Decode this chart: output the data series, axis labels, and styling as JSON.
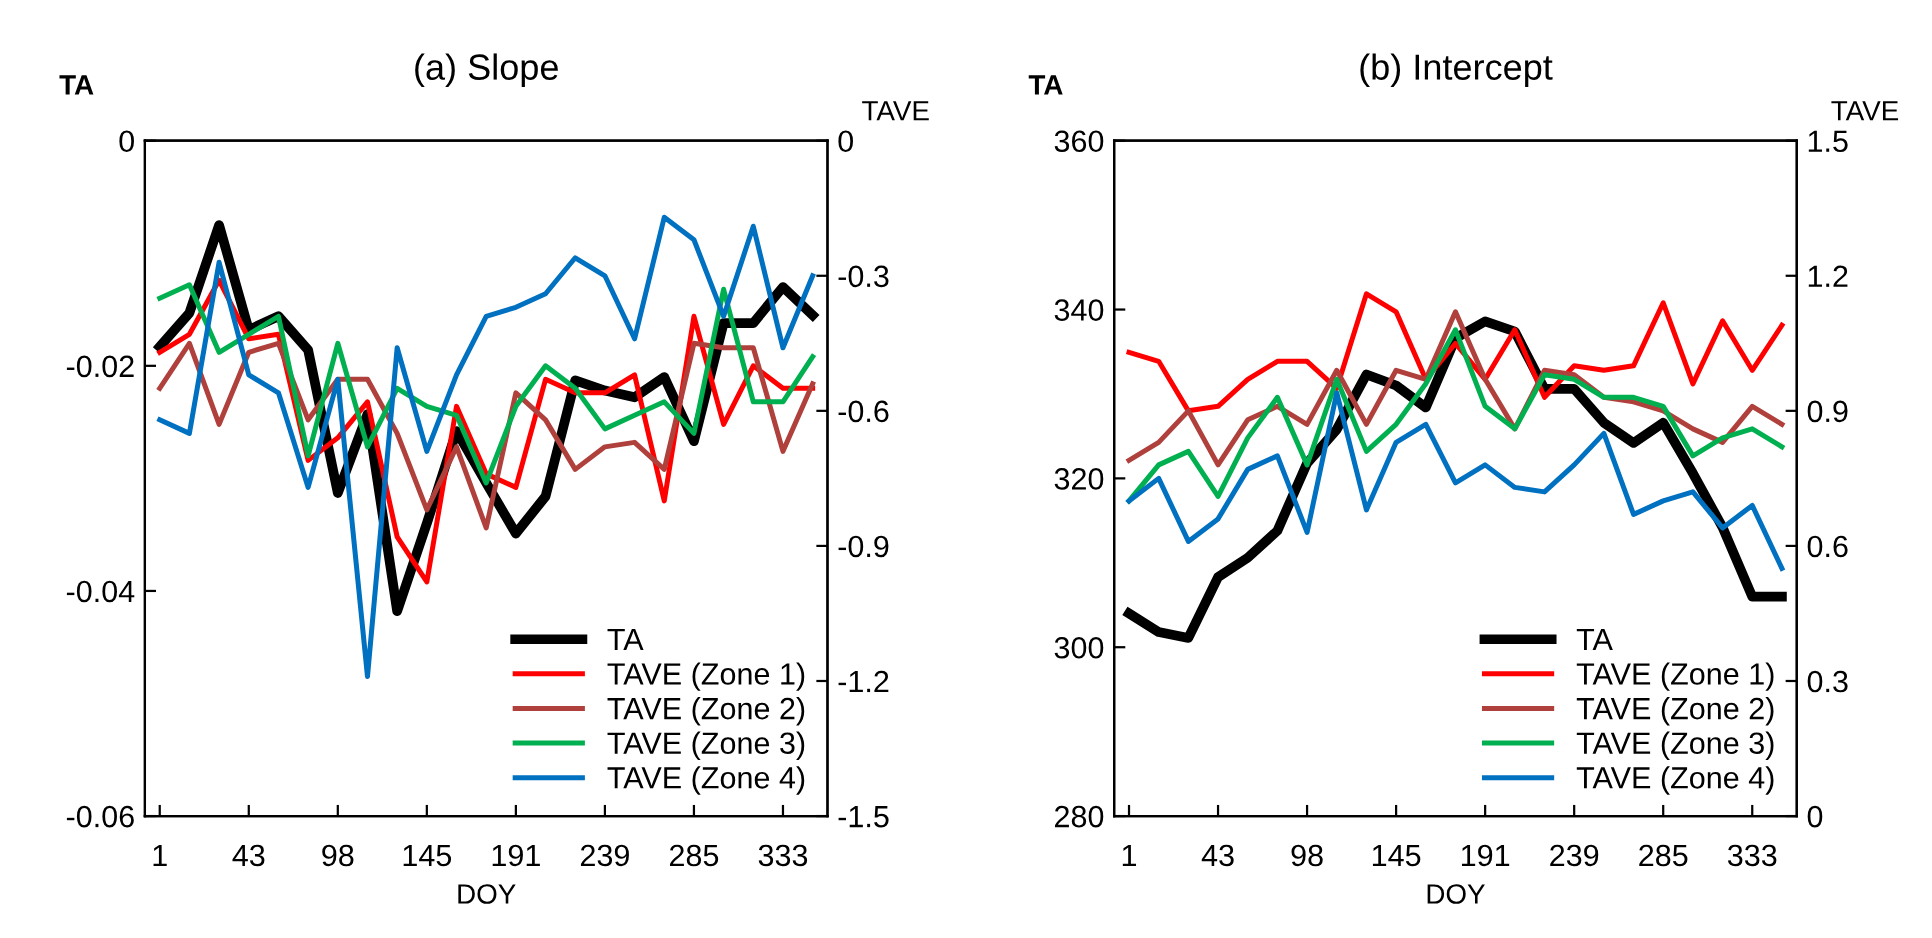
{
  "chart_data": [
    {
      "type": "line",
      "title": "(a) Slope",
      "xlabel": "DOY",
      "ylabel": "TA",
      "y2label": "TAVE",
      "categories": [
        "1",
        null,
        null,
        "43",
        null,
        null,
        "98",
        null,
        null,
        "145",
        null,
        null,
        "191",
        null,
        null,
        "239",
        null,
        null,
        "285",
        null,
        null,
        "333",
        null
      ],
      "ylim": [
        -0.06,
        0
      ],
      "yticks": [
        {
          "value": -0.06,
          "label": "-0.06"
        },
        {
          "value": -0.04,
          "label": "-0.04"
        },
        {
          "value": -0.02,
          "label": "-0.02"
        },
        0
      ],
      "y2lim": [
        -1.5,
        0
      ],
      "y2ticks": [
        {
          "value": -1.5,
          "label": "-1.5"
        },
        {
          "value": -1.2,
          "label": "-1.2"
        },
        {
          "value": -0.9,
          "label": "-0.9"
        },
        {
          "value": -0.6,
          "label": "-0.6"
        },
        {
          "value": -0.3,
          "label": "-0.3"
        },
        0
      ],
      "legend": "bottom right",
      "grid": false,
      "series": [
        {
          "name": "TA",
          "color": "#000000",
          "values": [
            -0.0183,
            -0.0153,
            -0.0075,
            -0.0168,
            -0.0156,
            -0.0186,
            -0.0313,
            -0.0243,
            -0.0418,
            -0.034,
            -0.0258,
            -0.0304,
            -0.0349,
            -0.0316,
            -0.0213,
            -0.0222,
            -0.0228,
            -0.021,
            -0.0267,
            -0.0162,
            -0.0162,
            -0.013,
            -0.0155
          ]
        },
        {
          "name": "TAVE (Zone 1)",
          "color": "#ff0000",
          "axis": "y2",
          "values": [
            -0.47,
            -0.43,
            -0.31,
            -0.44,
            -0.43,
            -0.71,
            -0.66,
            -0.58,
            -0.88,
            -0.98,
            -0.59,
            -0.74,
            -0.77,
            -0.53,
            -0.56,
            -0.56,
            -0.52,
            -0.8,
            -0.39,
            -0.63,
            -0.5,
            -0.55,
            -0.55
          ]
        },
        {
          "name": "TAVE (Zone 2)",
          "color": "#b0403c",
          "axis": "y2",
          "values": [
            -0.55,
            -0.45,
            -0.63,
            -0.47,
            -0.45,
            -0.62,
            -0.53,
            -0.53,
            -0.65,
            -0.82,
            -0.68,
            -0.86,
            -0.56,
            -0.62,
            -0.73,
            -0.68,
            -0.67,
            -0.73,
            -0.45,
            -0.46,
            -0.46,
            -0.69,
            -0.54
          ]
        },
        {
          "name": "TAVE (Zone 3)",
          "color": "#00b050",
          "axis": "y2",
          "values": [
            -0.35,
            -0.32,
            -0.47,
            -0.43,
            -0.39,
            -0.7,
            -0.45,
            -0.68,
            -0.55,
            -0.59,
            -0.61,
            -0.76,
            -0.59,
            -0.5,
            -0.55,
            -0.64,
            -0.61,
            -0.58,
            -0.65,
            -0.33,
            -0.58,
            -0.58,
            -0.48
          ]
        },
        {
          "name": "TAVE (Zone 4)",
          "color": "#0070c0",
          "axis": "y2",
          "values": [
            -0.62,
            -0.65,
            -0.27,
            -0.52,
            -0.56,
            -0.77,
            -0.53,
            -1.19,
            -0.46,
            -0.69,
            -0.52,
            -0.39,
            -0.37,
            -0.34,
            -0.26,
            -0.3,
            -0.44,
            -0.17,
            -0.22,
            -0.39,
            -0.19,
            -0.46,
            -0.3
          ]
        }
      ]
    },
    {
      "type": "line",
      "title": "(b) Intercept",
      "xlabel": "DOY",
      "ylabel": "TA",
      "y2label": "TAVE",
      "categories": [
        "1",
        null,
        null,
        "43",
        null,
        null,
        "98",
        null,
        null,
        "145",
        null,
        null,
        "191",
        null,
        null,
        "239",
        null,
        null,
        "285",
        null,
        null,
        "333",
        null
      ],
      "ylim": [
        280,
        360
      ],
      "yticks": [
        280,
        300,
        320,
        340,
        360
      ],
      "y2lim": [
        0,
        1.5
      ],
      "y2ticks": [
        0,
        0.3,
        0.6,
        0.9,
        1.2,
        1.5
      ],
      "legend": "bottom right",
      "grid": false,
      "series": [
        {
          "name": "TA",
          "color": "#000000",
          "values": [
            304,
            301.8,
            301.1,
            308.3,
            310.6,
            313.8,
            321.8,
            325.8,
            332.3,
            331,
            328.4,
            336.6,
            338.6,
            337.4,
            330.6,
            330.6,
            326.6,
            324.2,
            326.6,
            320.6,
            314.2,
            306,
            306
          ]
        },
        {
          "name": "TAVE (Zone 1)",
          "color": "#ff0000",
          "axis": "y2",
          "values": [
            1.03,
            1.01,
            0.9,
            0.91,
            0.97,
            1.01,
            1.01,
            0.95,
            1.16,
            1.12,
            0.97,
            1.05,
            0.97,
            1.08,
            0.93,
            1.0,
            0.99,
            1.0,
            1.14,
            0.96,
            1.1,
            0.99,
            1.09
          ]
        },
        {
          "name": "TAVE (Zone 2)",
          "color": "#b0403c",
          "axis": "y2",
          "values": [
            0.79,
            0.83,
            0.9,
            0.78,
            0.88,
            0.91,
            0.87,
            0.99,
            0.87,
            0.99,
            0.97,
            1.12,
            0.97,
            0.86,
            0.99,
            0.98,
            0.93,
            0.92,
            0.9,
            0.86,
            0.83,
            0.91,
            0.87
          ]
        },
        {
          "name": "TAVE (Zone 3)",
          "color": "#00b050",
          "axis": "y2",
          "values": [
            0.7,
            0.78,
            0.81,
            0.71,
            0.84,
            0.93,
            0.78,
            0.97,
            0.81,
            0.87,
            0.96,
            1.08,
            0.91,
            0.86,
            0.98,
            0.97,
            0.93,
            0.93,
            0.91,
            0.8,
            0.84,
            0.86,
            0.82
          ]
        },
        {
          "name": "TAVE (Zone 4)",
          "color": "#0070c0",
          "axis": "y2",
          "values": [
            0.7,
            0.75,
            0.61,
            0.66,
            0.77,
            0.8,
            0.63,
            0.94,
            0.68,
            0.83,
            0.87,
            0.74,
            0.78,
            0.73,
            0.72,
            0.78,
            0.85,
            0.67,
            0.7,
            0.72,
            0.64,
            0.69,
            0.55
          ]
        }
      ]
    }
  ]
}
